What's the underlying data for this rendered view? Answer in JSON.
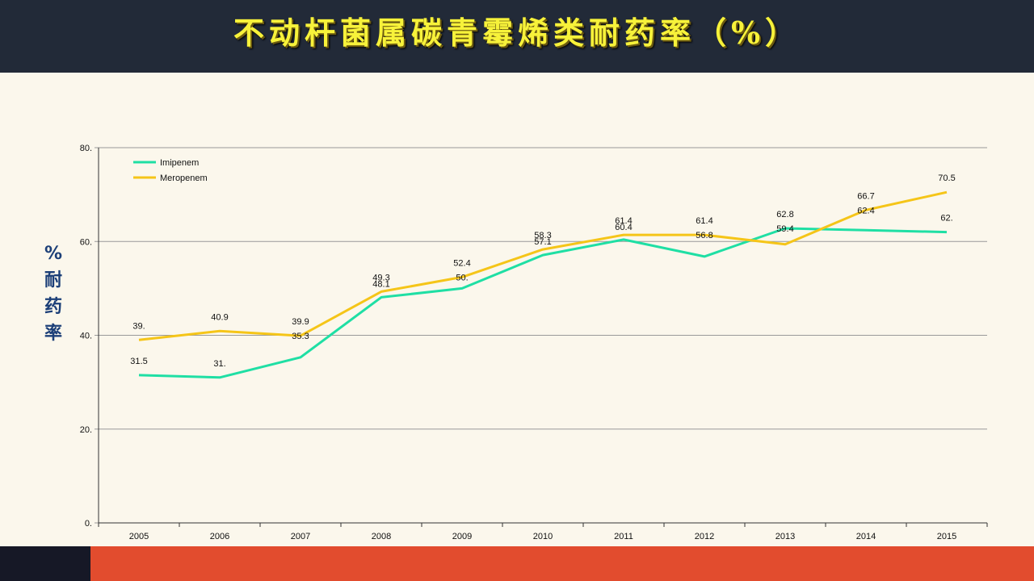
{
  "header": {
    "title": "不动杆菌属碳青霉烯类耐药率（%）"
  },
  "colors": {
    "imipenem": "#1fdfa4",
    "meropenem": "#f5c518",
    "grid": "#999999",
    "axis_text": "#111111",
    "ylabel": "#1c3f78"
  },
  "chart_data": {
    "type": "line",
    "title": "",
    "ylabel": "%\n耐\n药\n率",
    "xlabel": "",
    "categories": [
      "2005",
      "2006",
      "2007",
      "2008",
      "2009",
      "2010",
      "2011",
      "2012",
      "2013",
      "2014",
      "2015"
    ],
    "ylim": [
      0,
      80
    ],
    "yticks": [
      0,
      20,
      40,
      60,
      80
    ],
    "ytick_labels": [
      "0.",
      "20.",
      "40.",
      "60.",
      "80."
    ],
    "grid": true,
    "legend_position": "top-left",
    "series": [
      {
        "name": "Imipenem",
        "color": "#1fdfa4",
        "values": [
          31.5,
          31,
          35.3,
          48.1,
          50,
          57.1,
          60.4,
          56.8,
          62.8,
          62.4,
          62
        ],
        "labels": [
          "31.5",
          "31.",
          "35.3",
          "48.1",
          "50.",
          "57.1",
          "60.4",
          "56.8",
          "62.8",
          "62.4",
          "62."
        ]
      },
      {
        "name": "Meropenem",
        "color": "#f5c518",
        "values": [
          39,
          40.9,
          39.9,
          49.3,
          52.4,
          58.3,
          61.4,
          61.4,
          59.4,
          66.7,
          70.5
        ],
        "labels": [
          "39.",
          "40.9",
          "39.9",
          "49.3",
          "52.4",
          "58.3",
          "61.4",
          "61.4",
          "59.4",
          "66.7",
          "70.5"
        ]
      }
    ]
  }
}
